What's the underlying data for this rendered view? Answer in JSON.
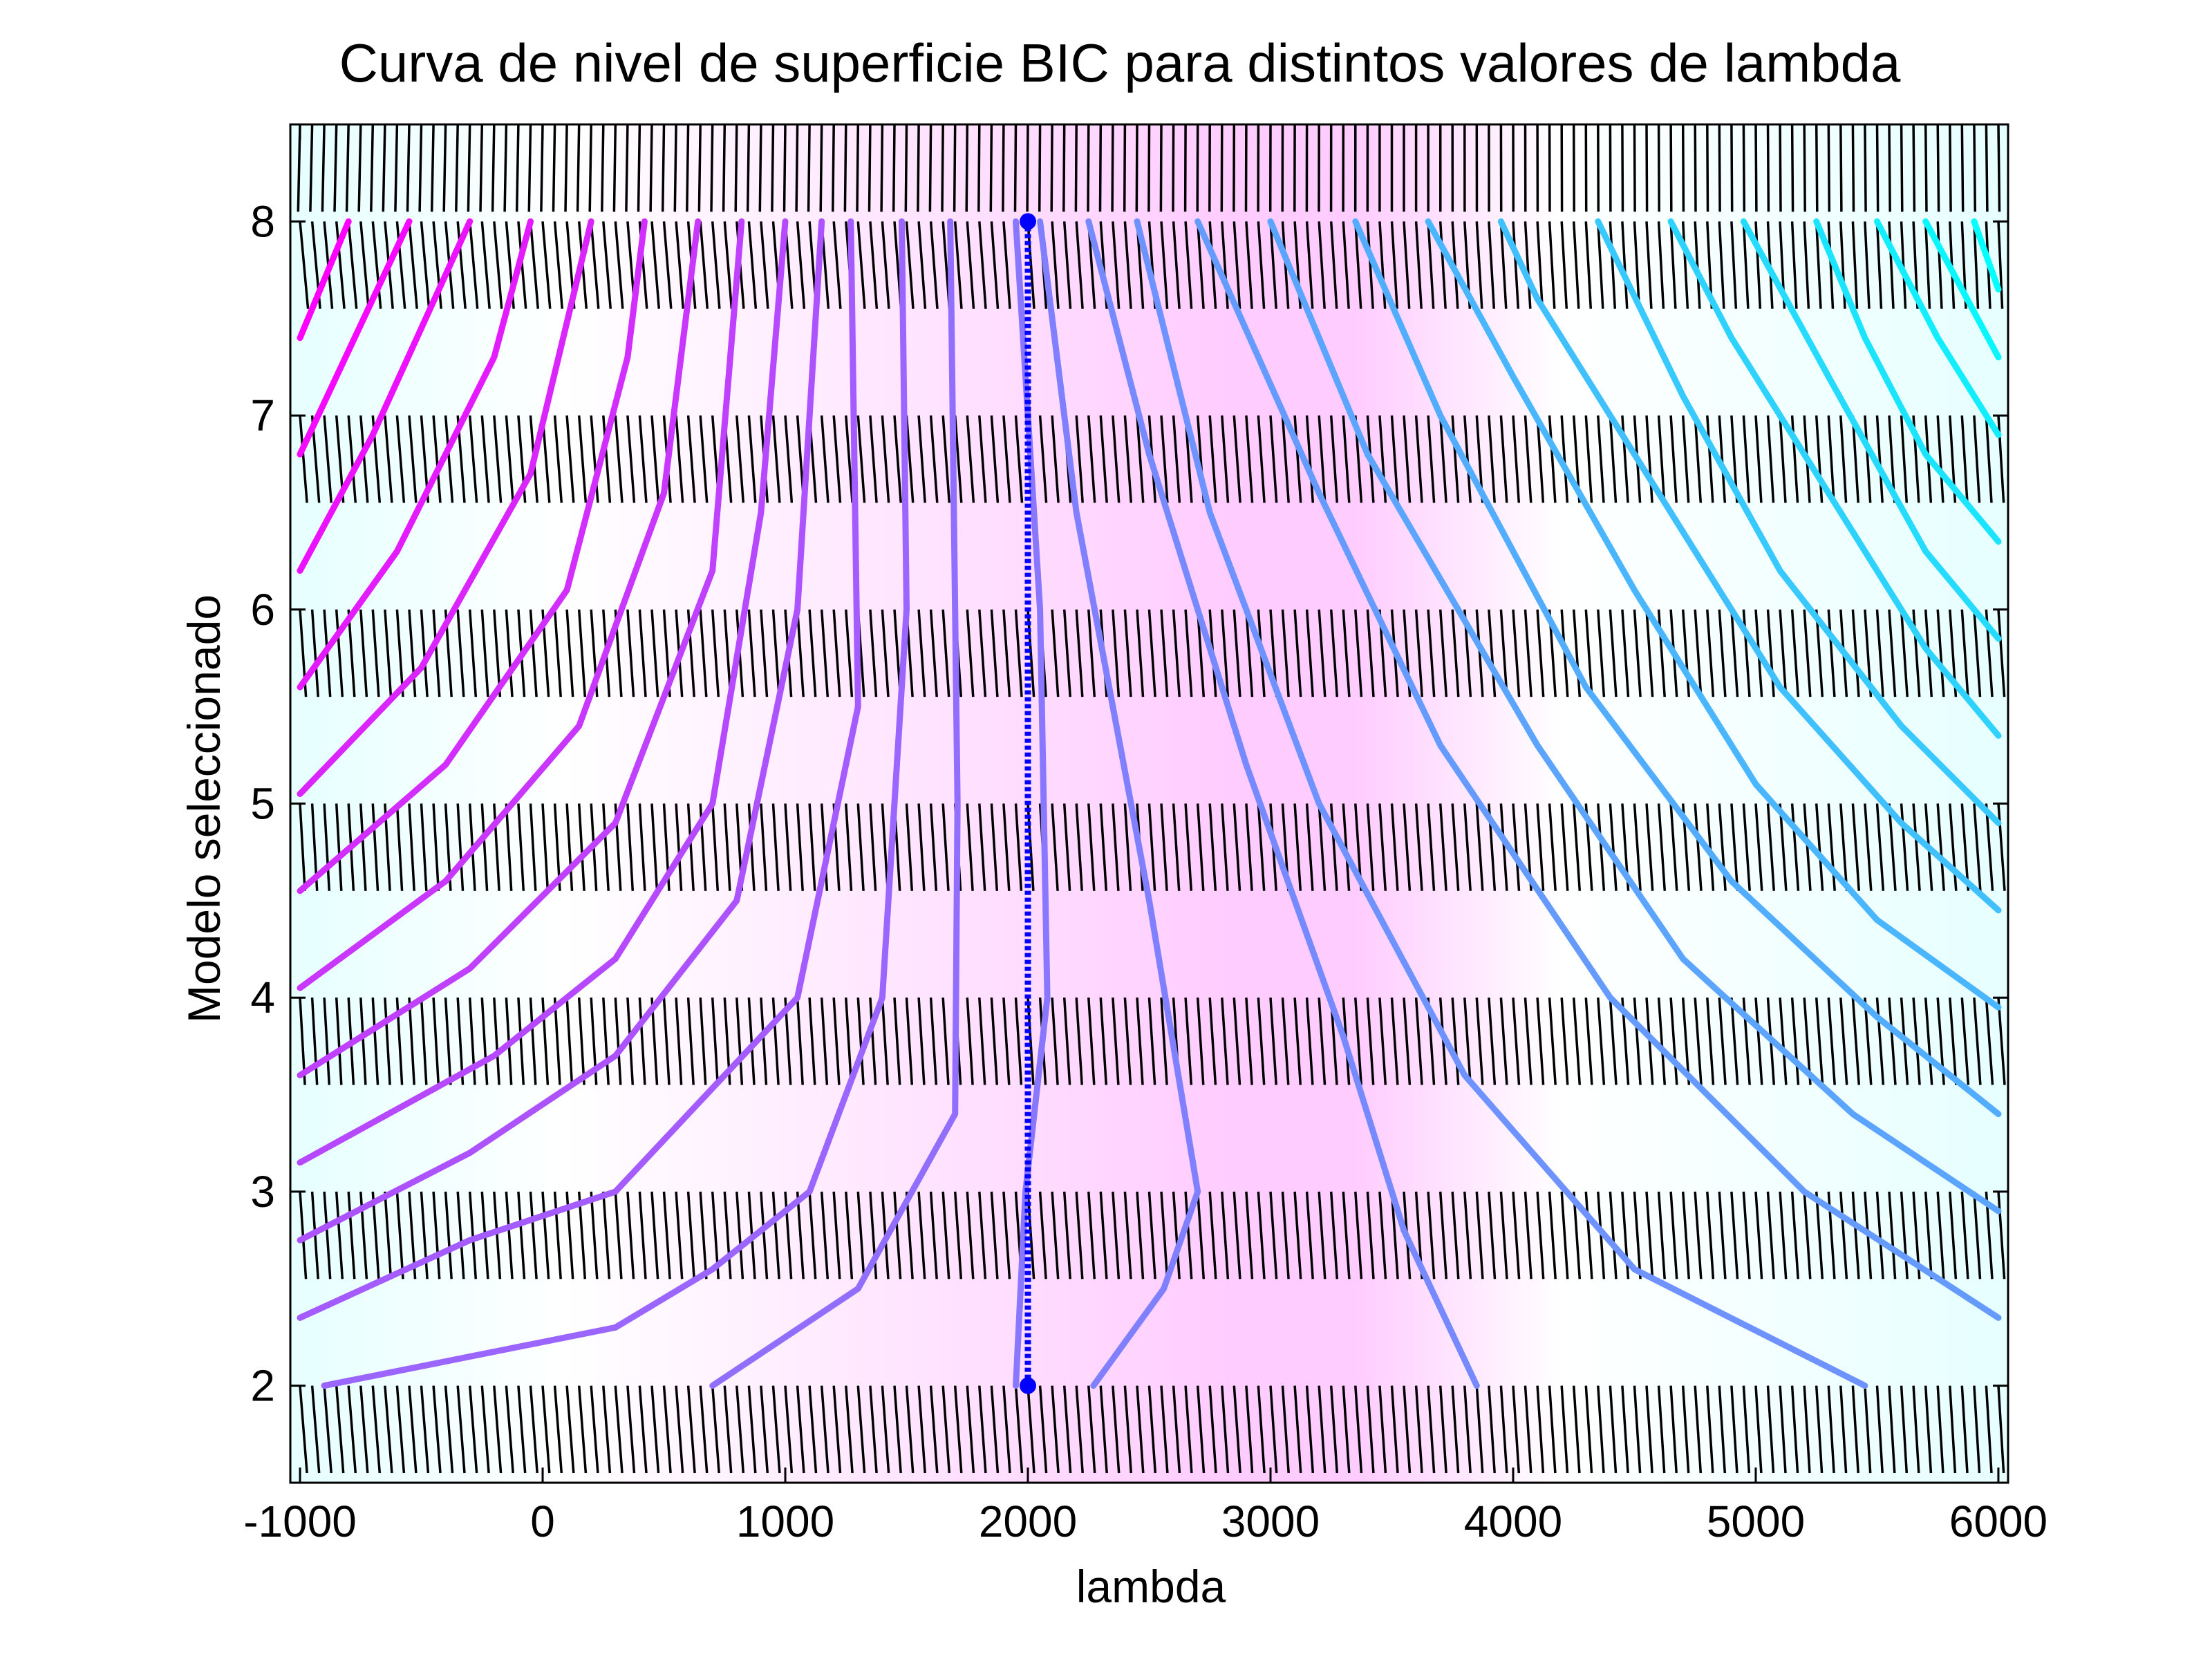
{
  "chart_data": {
    "type": "contour",
    "title": "Curva de nivel de superficie BIC para distintos valores de lambda",
    "xlabel": "lambda",
    "ylabel": "Modelo seleccionado",
    "xlim": [
      -1040,
      6040
    ],
    "ylim": [
      1.5,
      8.5
    ],
    "x_ticks": [
      -1000,
      0,
      1000,
      2000,
      3000,
      4000,
      5000,
      6000
    ],
    "x_tick_labels": [
      "-1000",
      "0",
      "1000",
      "2000",
      "3000",
      "4000",
      "5000",
      "6000"
    ],
    "y_ticks": [
      2,
      3,
      4,
      5,
      6,
      7,
      8
    ],
    "y_tick_labels": [
      "2",
      "3",
      "4",
      "5",
      "6",
      "7",
      "8"
    ],
    "grid": false,
    "legend": "none",
    "colormap": [
      "#e6ffff",
      "#ffffff",
      "#ffccff"
    ],
    "contour_colormap": [
      "#00ffff",
      "#8080ff",
      "#ff00ff"
    ],
    "quiver_color": "#000000",
    "optimum_line": {
      "x": [
        2000,
        2000
      ],
      "y": [
        2,
        8
      ],
      "color": "#0000ff"
    },
    "field_rows": [
      {
        "y": 8.5,
        "dx": [
          -0.011,
          0.006
        ],
        "dy": [
          -0.5,
          -0.5
        ]
      },
      {
        "y": 8,
        "dx": [
          0.046,
          0.022
        ],
        "dy": [
          -0.5,
          -0.5
        ]
      },
      {
        "y": 7,
        "dx": [
          0.04,
          0.03
        ],
        "dy": [
          -0.5,
          -0.5
        ]
      },
      {
        "y": 6,
        "dx": [
          0.034,
          0.034
        ],
        "dy": [
          -0.5,
          -0.5
        ]
      },
      {
        "y": 5,
        "dx": [
          0.028,
          0.036
        ],
        "dy": [
          -0.5,
          -0.5
        ]
      },
      {
        "y": 4,
        "dx": [
          0.028,
          0.036
        ],
        "dy": [
          -0.5,
          -0.5
        ]
      },
      {
        "y": 3,
        "dx": [
          0.034,
          0.034
        ],
        "dy": [
          -0.5,
          -0.5
        ]
      },
      {
        "y": 2,
        "dx": [
          0.04,
          0.03
        ],
        "dy": [
          -0.5,
          -0.5
        ]
      }
    ],
    "contours": [
      {
        "x": [
          -1000,
          -800
        ],
        "y": [
          7.4,
          8.0
        ]
      },
      {
        "x": [
          -1000,
          -550
        ],
        "y": [
          6.8,
          8.0
        ]
      },
      {
        "x": [
          -1000,
          -700,
          -300
        ],
        "y": [
          6.2,
          6.9,
          8.0
        ]
      },
      {
        "x": [
          -1000,
          -600,
          -200,
          -50
        ],
        "y": [
          5.6,
          6.3,
          7.3,
          8.0
        ]
      },
      {
        "x": [
          -1000,
          -500,
          -50,
          200
        ],
        "y": [
          5.05,
          5.7,
          6.7,
          8.0
        ]
      },
      {
        "x": [
          -1000,
          -400,
          100,
          350,
          420
        ],
        "y": [
          4.55,
          5.2,
          6.1,
          7.3,
          8.0
        ]
      },
      {
        "x": [
          -1000,
          -400,
          150,
          500,
          640
        ],
        "y": [
          4.05,
          4.6,
          5.4,
          6.6,
          8.0
        ]
      },
      {
        "x": [
          -1000,
          -300,
          300,
          700,
          820
        ],
        "y": [
          3.6,
          4.15,
          4.9,
          6.2,
          8.0
        ]
      },
      {
        "x": [
          -1000,
          -200,
          300,
          700,
          900,
          1000
        ],
        "y": [
          3.15,
          3.7,
          4.2,
          5.0,
          6.5,
          8.0
        ]
      },
      {
        "x": [
          -1000,
          -300,
          300,
          800,
          1050,
          1150
        ],
        "y": [
          2.75,
          3.2,
          3.7,
          4.5,
          6.0,
          8.0
        ]
      },
      {
        "x": [
          -1000,
          -300,
          300,
          1050,
          1300,
          1270
        ],
        "y": [
          2.35,
          2.75,
          3.0,
          4.0,
          5.5,
          8.0
        ]
      },
      {
        "x": [
          -900,
          300,
          700,
          1100,
          1400,
          1500,
          1480
        ],
        "y": [
          2.0,
          2.3,
          2.6,
          3.0,
          4.0,
          6.0,
          8.0
        ]
      },
      {
        "x": [
          700,
          1300,
          1700,
          1710,
          1680
        ],
        "y": [
          2.0,
          2.5,
          3.4,
          5.0,
          8.0
        ]
      },
      {
        "x": [
          1950,
          1990,
          2080,
          2050,
          1950
        ],
        "y": [
          2.0,
          3.0,
          4.0,
          6.0,
          8.0
        ]
      },
      {
        "x": [
          2270,
          2560,
          2700,
          2500,
          2200,
          2050
        ],
        "y": [
          2.0,
          2.5,
          3.0,
          4.5,
          6.5,
          8.0
        ]
      },
      {
        "x": [
          3850,
          3550,
          3300,
          2900,
          2500,
          2250
        ],
        "y": [
          2.0,
          2.8,
          3.8,
          5.2,
          6.8,
          8.0
        ]
      },
      {
        "x": [
          5450,
          4500,
          3800,
          3200,
          2750,
          2450
        ],
        "y": [
          2.0,
          2.6,
          3.6,
          5.0,
          6.5,
          8.0
        ]
      },
      {
        "x": [
          6000,
          5200,
          4400,
          3700,
          3200,
          2700
        ],
        "y": [
          2.35,
          3.0,
          4.0,
          5.3,
          6.6,
          8.0
        ]
      },
      {
        "x": [
          6000,
          5400,
          4700,
          4100,
          3400,
          3000
        ],
        "y": [
          2.9,
          3.4,
          4.2,
          5.3,
          6.8,
          8.0
        ]
      },
      {
        "x": [
          6000,
          5500,
          4900,
          4300,
          3700,
          3350
        ],
        "y": [
          3.4,
          3.9,
          4.6,
          5.6,
          7.0,
          8.0
        ]
      },
      {
        "x": [
          6000,
          5500,
          5000,
          4500,
          4000,
          3650
        ],
        "y": [
          3.95,
          4.4,
          5.1,
          6.1,
          7.2,
          8.0
        ]
      },
      {
        "x": [
          6000,
          5600,
          5100,
          4600,
          4100,
          3950
        ],
        "y": [
          4.45,
          4.9,
          5.6,
          6.6,
          7.6,
          8.0
        ]
      },
      {
        "x": [
          6000,
          5600,
          5100,
          4700,
          4350
        ],
        "y": [
          4.9,
          5.4,
          6.2,
          7.1,
          8.0
        ]
      },
      {
        "x": [
          6000,
          5700,
          5300,
          4900,
          4650
        ],
        "y": [
          5.35,
          5.8,
          6.6,
          7.4,
          8.0
        ]
      },
      {
        "x": [
          6000,
          5700,
          5300,
          4950
        ],
        "y": [
          5.85,
          6.3,
          7.2,
          8.0
        ]
      },
      {
        "x": [
          6000,
          5700,
          5450,
          5250
        ],
        "y": [
          6.35,
          6.8,
          7.4,
          8.0
        ]
      },
      {
        "x": [
          6000,
          5750,
          5500
        ],
        "y": [
          6.9,
          7.4,
          8.0
        ]
      },
      {
        "x": [
          6000,
          5850,
          5700
        ],
        "y": [
          7.3,
          7.65,
          8.0
        ]
      },
      {
        "x": [
          6000,
          5900
        ],
        "y": [
          7.65,
          8.0
        ]
      }
    ]
  }
}
